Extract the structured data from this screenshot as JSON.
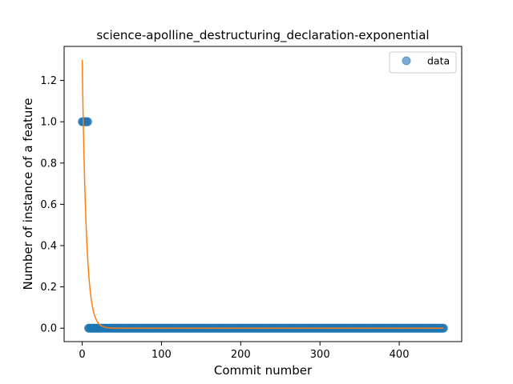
{
  "chart_data": {
    "type": "scatter",
    "title": "science-apolline_destructuring_declaration-exponential",
    "xlabel": "Commit number",
    "ylabel": "Number of instance of a feature",
    "xlim": [
      -22.8,
      478.8
    ],
    "ylim": [
      -0.065,
      1.365
    ],
    "xticks": [
      0,
      100,
      200,
      300,
      400
    ],
    "xtick_labels": [
      "0",
      "100",
      "200",
      "300",
      "400"
    ],
    "yticks": [
      0.0,
      0.2,
      0.4,
      0.6,
      0.8,
      1.0,
      1.2
    ],
    "ytick_labels": [
      "0.0",
      "0.2",
      "0.4",
      "0.6",
      "0.8",
      "1.0",
      "1.2"
    ],
    "grid": false,
    "legend": {
      "position": "top-right",
      "entries": [
        "data"
      ]
    },
    "series": [
      {
        "name": "data",
        "kind": "scatter",
        "color": "#1f77b4",
        "points": [
          [
            0,
            1
          ],
          [
            1,
            1
          ],
          [
            2,
            1
          ],
          [
            3,
            1
          ],
          [
            4,
            1
          ],
          [
            5,
            1
          ],
          [
            6,
            1
          ],
          [
            7,
            1
          ],
          {
            "x_from": 8,
            "x_to": 456,
            "step": 1,
            "y": 0
          }
        ]
      },
      {
        "name": "",
        "kind": "line",
        "color": "#ff7f0e",
        "model": "exponential",
        "a": 1.3,
        "b": 0.195,
        "c": 0.0,
        "x_range": [
          0,
          456
        ]
      }
    ]
  }
}
